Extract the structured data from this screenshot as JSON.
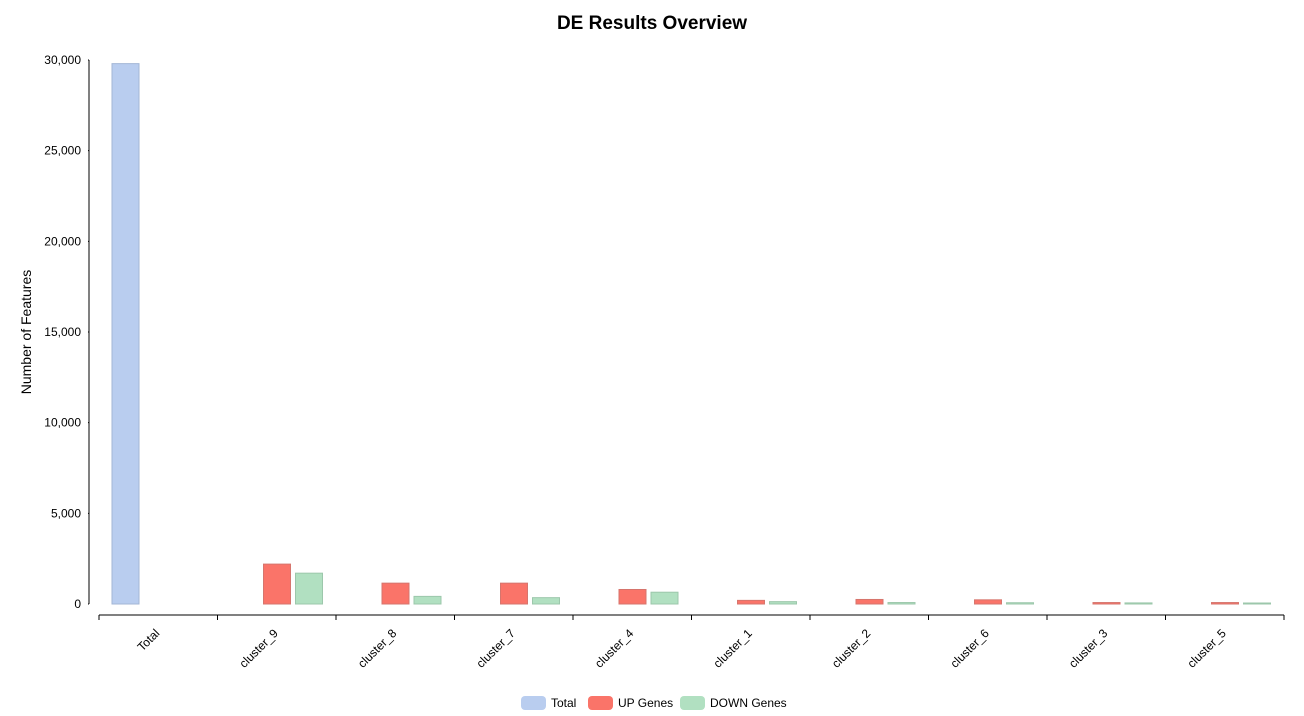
{
  "chart_data": {
    "type": "bar",
    "title": "DE Results Overview",
    "xlabel": "",
    "ylabel": "Number of Features",
    "ylim": [
      0,
      30000
    ],
    "y_ticks": [
      "0",
      "5,000",
      "10,000",
      "15,000",
      "20,000",
      "25,000",
      "30,000"
    ],
    "y_tick_values": [
      0,
      5000,
      10000,
      15000,
      20000,
      25000,
      30000
    ],
    "categories": [
      "Total",
      "cluster_9",
      "cluster_8",
      "cluster_7",
      "cluster_4",
      "cluster_1",
      "cluster_2",
      "cluster_6",
      "cluster_3",
      "cluster_5"
    ],
    "series": [
      {
        "name": "Total",
        "color": "#b9cdef",
        "values": [
          29800,
          null,
          null,
          null,
          null,
          null,
          null,
          null,
          null,
          null
        ]
      },
      {
        "name": "UP Genes",
        "color": "#fa7469",
        "values": [
          null,
          2200,
          1150,
          1150,
          800,
          200,
          250,
          230,
          80,
          80
        ]
      },
      {
        "name": "DOWN Genes",
        "color": "#b1e0c1",
        "values": [
          null,
          1700,
          420,
          350,
          650,
          130,
          80,
          70,
          60,
          40
        ]
      }
    ],
    "legend_position": "bottom",
    "grid": false
  }
}
